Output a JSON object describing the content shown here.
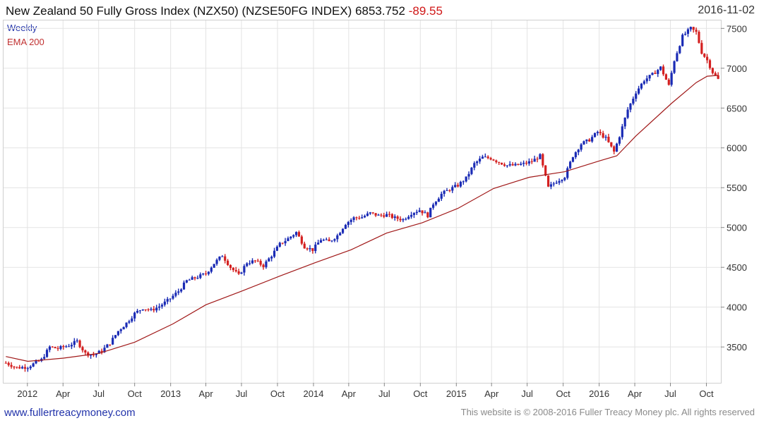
{
  "header": {
    "title": "New Zealand 50 Fully Gross Index (NZX50) (NZSE50FG INDEX)",
    "last": "6853.752",
    "change": "-89.55",
    "date": "2016-11-02"
  },
  "legend": {
    "period": "Weekly",
    "ema": "EMA 200"
  },
  "footer": {
    "site": "www.fullertreacymoney.com",
    "copyright": "This website is © 2008-2016 Fuller Treacy Money plc. All rights reserved"
  },
  "colors": {
    "up": "#1a2bb5",
    "down": "#d42020",
    "ema": "#a01818",
    "grid": "#e3e3e3"
  },
  "chart_data": {
    "type": "line",
    "title": "New Zealand 50 Fully Gross Index (NZX50) (NZSE50FG INDEX)",
    "frequency": "Weekly",
    "ylim": [
      3050,
      7600
    ],
    "xlim": [
      "2011-11-01",
      "2016-11-07"
    ],
    "y_ticks": [
      3500,
      4000,
      4500,
      5000,
      5500,
      6000,
      6500,
      7000,
      7500
    ],
    "x_ticks": [
      {
        "date": "2012-01-01",
        "label": "2012"
      },
      {
        "date": "2012-04-01",
        "label": "Apr"
      },
      {
        "date": "2012-07-01",
        "label": "Jul"
      },
      {
        "date": "2012-10-01",
        "label": "Oct"
      },
      {
        "date": "2013-01-01",
        "label": "2013"
      },
      {
        "date": "2013-04-01",
        "label": "Apr"
      },
      {
        "date": "2013-07-01",
        "label": "Jul"
      },
      {
        "date": "2013-10-01",
        "label": "Oct"
      },
      {
        "date": "2014-01-01",
        "label": "2014"
      },
      {
        "date": "2014-04-01",
        "label": "Apr"
      },
      {
        "date": "2014-07-01",
        "label": "Jul"
      },
      {
        "date": "2014-10-01",
        "label": "Oct"
      },
      {
        "date": "2015-01-01",
        "label": "2015"
      },
      {
        "date": "2015-04-01",
        "label": "Apr"
      },
      {
        "date": "2015-07-01",
        "label": "Jul"
      },
      {
        "date": "2015-10-01",
        "label": "Oct"
      },
      {
        "date": "2016-01-01",
        "label": "2016"
      },
      {
        "date": "2016-04-01",
        "label": "Apr"
      },
      {
        "date": "2016-07-01",
        "label": "Jul"
      },
      {
        "date": "2016-10-01",
        "label": "Oct"
      }
    ],
    "grid": true,
    "legend_position": "top-left",
    "series": [
      {
        "name": "Weekly",
        "points": [
          [
            "2011-11-07",
            3300
          ],
          [
            "2011-12-05",
            3240
          ],
          [
            "2012-01-02",
            3250
          ],
          [
            "2012-02-06",
            3340
          ],
          [
            "2012-02-27",
            3500
          ],
          [
            "2012-03-19",
            3480
          ],
          [
            "2012-04-16",
            3520
          ],
          [
            "2012-05-07",
            3570
          ],
          [
            "2012-05-28",
            3420
          ],
          [
            "2012-06-18",
            3400
          ],
          [
            "2012-07-09",
            3450
          ],
          [
            "2012-07-30",
            3550
          ],
          [
            "2012-08-20",
            3700
          ],
          [
            "2012-09-10",
            3800
          ],
          [
            "2012-10-01",
            3920
          ],
          [
            "2012-10-22",
            3990
          ],
          [
            "2012-11-12",
            3960
          ],
          [
            "2012-12-03",
            4010
          ],
          [
            "2012-12-24",
            4080
          ],
          [
            "2013-01-21",
            4200
          ],
          [
            "2013-02-11",
            4330
          ],
          [
            "2013-03-11",
            4380
          ],
          [
            "2013-04-01",
            4420
          ],
          [
            "2013-04-22",
            4550
          ],
          [
            "2013-05-13",
            4650
          ],
          [
            "2013-06-03",
            4500
          ],
          [
            "2013-06-24",
            4400
          ],
          [
            "2013-07-15",
            4560
          ],
          [
            "2013-08-05",
            4580
          ],
          [
            "2013-08-26",
            4520
          ],
          [
            "2013-09-16",
            4650
          ],
          [
            "2013-10-07",
            4790
          ],
          [
            "2013-10-28",
            4860
          ],
          [
            "2013-11-18",
            4940
          ],
          [
            "2013-12-09",
            4760
          ],
          [
            "2013-12-30",
            4720
          ],
          [
            "2014-01-20",
            4850
          ],
          [
            "2014-02-10",
            4820
          ],
          [
            "2014-03-03",
            4900
          ],
          [
            "2014-03-24",
            5050
          ],
          [
            "2014-04-14",
            5120
          ],
          [
            "2014-05-05",
            5130
          ],
          [
            "2014-05-26",
            5180
          ],
          [
            "2014-06-16",
            5150
          ],
          [
            "2014-07-07",
            5160
          ],
          [
            "2014-07-28",
            5120
          ],
          [
            "2014-08-18",
            5100
          ],
          [
            "2014-09-08",
            5180
          ],
          [
            "2014-09-29",
            5220
          ],
          [
            "2014-10-20",
            5150
          ],
          [
            "2014-11-03",
            5300
          ],
          [
            "2014-11-24",
            5420
          ],
          [
            "2014-12-15",
            5480
          ],
          [
            "2015-01-05",
            5530
          ],
          [
            "2015-01-26",
            5620
          ],
          [
            "2015-02-16",
            5800
          ],
          [
            "2015-03-09",
            5880
          ],
          [
            "2015-03-30",
            5870
          ],
          [
            "2015-04-20",
            5820
          ],
          [
            "2015-05-11",
            5780
          ],
          [
            "2015-06-01",
            5780
          ],
          [
            "2015-06-22",
            5800
          ],
          [
            "2015-07-13",
            5830
          ],
          [
            "2015-08-03",
            5900
          ],
          [
            "2015-08-24",
            5500
          ],
          [
            "2015-09-14",
            5580
          ],
          [
            "2015-10-05",
            5640
          ],
          [
            "2015-10-26",
            5900
          ],
          [
            "2015-11-16",
            6050
          ],
          [
            "2015-12-07",
            6100
          ],
          [
            "2015-12-28",
            6200
          ],
          [
            "2016-01-18",
            6120
          ],
          [
            "2016-02-08",
            5950
          ],
          [
            "2016-02-22",
            6150
          ],
          [
            "2016-03-14",
            6480
          ],
          [
            "2016-04-04",
            6700
          ],
          [
            "2016-04-25",
            6850
          ],
          [
            "2016-05-16",
            6920
          ],
          [
            "2016-06-06",
            7010
          ],
          [
            "2016-06-27",
            6780
          ],
          [
            "2016-07-11",
            7100
          ],
          [
            "2016-08-01",
            7400
          ],
          [
            "2016-08-22",
            7500
          ],
          [
            "2016-09-05",
            7450
          ],
          [
            "2016-09-19",
            7200
          ],
          [
            "2016-10-03",
            7100
          ],
          [
            "2016-10-17",
            6950
          ],
          [
            "2016-10-31",
            6860
          ]
        ]
      },
      {
        "name": "EMA 200",
        "points": [
          [
            "2011-11-07",
            3380
          ],
          [
            "2012-01-02",
            3320
          ],
          [
            "2012-04-02",
            3360
          ],
          [
            "2012-07-02",
            3420
          ],
          [
            "2012-10-01",
            3560
          ],
          [
            "2013-01-07",
            3790
          ],
          [
            "2013-04-01",
            4030
          ],
          [
            "2013-07-01",
            4200
          ],
          [
            "2013-10-07",
            4390
          ],
          [
            "2014-01-06",
            4560
          ],
          [
            "2014-04-07",
            4720
          ],
          [
            "2014-07-07",
            4930
          ],
          [
            "2014-10-06",
            5060
          ],
          [
            "2015-01-05",
            5240
          ],
          [
            "2015-04-06",
            5490
          ],
          [
            "2015-07-06",
            5630
          ],
          [
            "2015-10-05",
            5700
          ],
          [
            "2016-01-04",
            5840
          ],
          [
            "2016-02-15",
            5900
          ],
          [
            "2016-04-04",
            6150
          ],
          [
            "2016-07-04",
            6560
          ],
          [
            "2016-09-05",
            6820
          ],
          [
            "2016-10-03",
            6900
          ],
          [
            "2016-10-31",
            6910
          ]
        ]
      }
    ]
  }
}
